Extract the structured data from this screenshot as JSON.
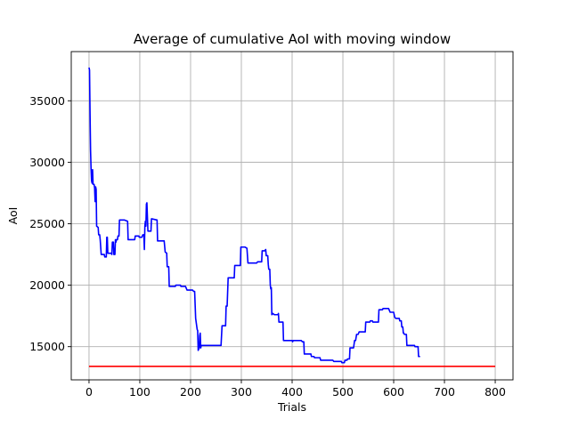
{
  "chart_data": {
    "type": "line",
    "title": "Average of cumulative AoI with moving window",
    "xlabel": "Trials",
    "ylabel": "AoI",
    "xlim": [
      -35,
      835
    ],
    "ylim": [
      12300,
      39000
    ],
    "xticks": [
      0,
      100,
      200,
      300,
      400,
      500,
      600,
      700,
      800
    ],
    "yticks": [
      15000,
      20000,
      25000,
      30000,
      35000
    ],
    "grid": true,
    "series": [
      {
        "color": "#0000ff",
        "points": [
          [
            0,
            37700
          ],
          [
            1,
            37500
          ],
          [
            2,
            34000
          ],
          [
            3,
            31000
          ],
          [
            4,
            29500
          ],
          [
            5,
            28500
          ],
          [
            6,
            28300
          ],
          [
            7,
            29400
          ],
          [
            8,
            28200
          ],
          [
            10,
            28200
          ],
          [
            11,
            27900
          ],
          [
            12,
            26800
          ],
          [
            13,
            28000
          ],
          [
            14,
            27800
          ],
          [
            15,
            24800
          ],
          [
            18,
            24700
          ],
          [
            19,
            24100
          ],
          [
            21,
            24100
          ],
          [
            22,
            23700
          ],
          [
            24,
            22500
          ],
          [
            30,
            22500
          ],
          [
            31,
            22300
          ],
          [
            34,
            22300
          ],
          [
            35,
            23900
          ],
          [
            36,
            23900
          ],
          [
            37,
            22600
          ],
          [
            44,
            22600
          ],
          [
            45,
            22500
          ],
          [
            46,
            23500
          ],
          [
            48,
            23500
          ],
          [
            49,
            22500
          ],
          [
            51,
            22500
          ],
          [
            52,
            23700
          ],
          [
            53,
            23500
          ],
          [
            54,
            23700
          ],
          [
            56,
            23700
          ],
          [
            57,
            24000
          ],
          [
            59,
            24000
          ],
          [
            60,
            25300
          ],
          [
            70,
            25300
          ],
          [
            76,
            25200
          ],
          [
            77,
            23700
          ],
          [
            90,
            23700
          ],
          [
            91,
            24000
          ],
          [
            98,
            24000
          ],
          [
            99,
            23900
          ],
          [
            104,
            23900
          ],
          [
            106,
            24100
          ],
          [
            108,
            24100
          ],
          [
            109,
            22900
          ],
          [
            110,
            24800
          ],
          [
            111,
            25200
          ],
          [
            112,
            24800
          ],
          [
            113,
            26600
          ],
          [
            114,
            26700
          ],
          [
            116,
            24400
          ],
          [
            122,
            24400
          ],
          [
            123,
            25400
          ],
          [
            134,
            25300
          ],
          [
            135,
            23600
          ],
          [
            148,
            23600
          ],
          [
            150,
            22700
          ],
          [
            153,
            22600
          ],
          [
            154,
            21500
          ],
          [
            157,
            21500
          ],
          [
            158,
            19900
          ],
          [
            170,
            19900
          ],
          [
            171,
            20000
          ],
          [
            180,
            20000
          ],
          [
            181,
            19900
          ],
          [
            190,
            19900
          ],
          [
            192,
            19700
          ],
          [
            193,
            19600
          ],
          [
            204,
            19600
          ],
          [
            206,
            19500
          ],
          [
            208,
            19500
          ],
          [
            210,
            17300
          ],
          [
            213,
            16400
          ],
          [
            214,
            16300
          ],
          [
            215,
            14700
          ],
          [
            217,
            14900
          ],
          [
            218,
            15900
          ],
          [
            219,
            16100
          ],
          [
            220,
            14900
          ],
          [
            221,
            15100
          ],
          [
            240,
            15100
          ],
          [
            260,
            15100
          ],
          [
            262,
            16700
          ],
          [
            269,
            16700
          ],
          [
            270,
            18300
          ],
          [
            272,
            18300
          ],
          [
            274,
            20600
          ],
          [
            286,
            20600
          ],
          [
            287,
            21600
          ],
          [
            298,
            21600
          ],
          [
            299,
            23100
          ],
          [
            307,
            23100
          ],
          [
            311,
            23000
          ],
          [
            313,
            21800
          ],
          [
            330,
            21800
          ],
          [
            332,
            21900
          ],
          [
            340,
            21900
          ],
          [
            341,
            22800
          ],
          [
            346,
            22800
          ],
          [
            348,
            22900
          ],
          [
            349,
            22400
          ],
          [
            352,
            22400
          ],
          [
            353,
            21700
          ],
          [
            354,
            21300
          ],
          [
            356,
            21300
          ],
          [
            357,
            20000
          ],
          [
            358,
            19700
          ],
          [
            359,
            19800
          ],
          [
            360,
            17600
          ],
          [
            362,
            17700
          ],
          [
            365,
            17600
          ],
          [
            372,
            17600
          ],
          [
            373,
            17700
          ],
          [
            374,
            17000
          ],
          [
            380,
            17000
          ],
          [
            382,
            17000
          ],
          [
            383,
            15500
          ],
          [
            400,
            15500
          ],
          [
            401,
            15400
          ],
          [
            402,
            15500
          ],
          [
            418,
            15500
          ],
          [
            420,
            15400
          ],
          [
            423,
            15400
          ],
          [
            424,
            14400
          ],
          [
            437,
            14400
          ],
          [
            438,
            14200
          ],
          [
            443,
            14200
          ],
          [
            444,
            14100
          ],
          [
            455,
            14100
          ],
          [
            456,
            13900
          ],
          [
            480,
            13900
          ],
          [
            482,
            13800
          ],
          [
            495,
            13800
          ],
          [
            497,
            13800
          ],
          [
            498,
            13700
          ],
          [
            503,
            13700
          ],
          [
            504,
            13900
          ],
          [
            508,
            13900
          ],
          [
            509,
            14000
          ],
          [
            513,
            14000
          ],
          [
            514,
            14900
          ],
          [
            521,
            14900
          ],
          [
            523,
            15500
          ],
          [
            525,
            15500
          ],
          [
            527,
            16000
          ],
          [
            530,
            16000
          ],
          [
            532,
            16200
          ],
          [
            544,
            16200
          ],
          [
            545,
            17000
          ],
          [
            553,
            17000
          ],
          [
            554,
            17100
          ],
          [
            558,
            17100
          ],
          [
            559,
            17000
          ],
          [
            570,
            17000
          ],
          [
            571,
            18000
          ],
          [
            578,
            18000
          ],
          [
            579,
            18100
          ],
          [
            590,
            18100
          ],
          [
            592,
            17900
          ],
          [
            593,
            17800
          ],
          [
            600,
            17800
          ],
          [
            602,
            17400
          ],
          [
            604,
            17300
          ],
          [
            611,
            17300
          ],
          [
            612,
            17100
          ],
          [
            615,
            17100
          ],
          [
            616,
            16600
          ],
          [
            618,
            16600
          ],
          [
            619,
            16100
          ],
          [
            620,
            16100
          ],
          [
            621,
            16000
          ],
          [
            625,
            16000
          ],
          [
            626,
            15100
          ],
          [
            640,
            15100
          ],
          [
            641,
            15100
          ],
          [
            642,
            15000
          ],
          [
            648,
            15000
          ],
          [
            649,
            14200
          ],
          [
            652,
            14200
          ]
        ]
      },
      {
        "color": "#ff0000",
        "points": [
          [
            0,
            13400
          ],
          [
            800,
            13400
          ]
        ]
      }
    ]
  }
}
